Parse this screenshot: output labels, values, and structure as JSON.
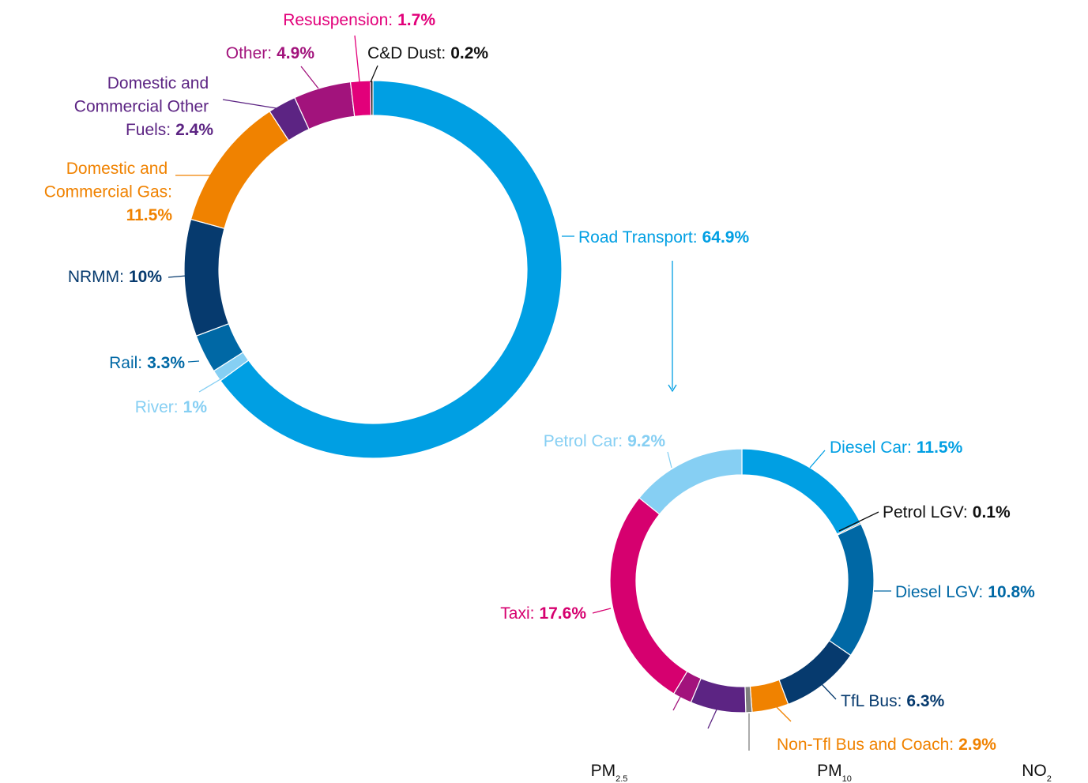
{
  "chart_data": [
    {
      "type": "donut",
      "categories": [
        "Road Transport:",
        "River:",
        "Rail:",
        "NRMM:",
        "Domestic and Commercial Gas:",
        "Domestic and Commercial Other Fuels:",
        "Other:",
        "Resuspension:",
        "C&D Dust:"
      ],
      "values": [
        64.9,
        1,
        3.3,
        10,
        11.5,
        2.4,
        4.9,
        1.7,
        0.2
      ],
      "value_labels": [
        "64.9%",
        "1%",
        "3.3%",
        "10%",
        "11.5%",
        "2.4%",
        "4.9%",
        "1.7%",
        "0.2%"
      ],
      "colors": [
        "#009fe3",
        "#86cff3",
        "#0068a5",
        "#063a6e",
        "#f08200",
        "#5c2483",
        "#a2137c",
        "#e2007a",
        "#111111"
      ]
    },
    {
      "type": "donut",
      "categories": [
        "Diesel Car:",
        "Petrol LGV:",
        "Diesel LGV:",
        "TfL Bus:",
        "Non-Tfl Bus and Coach:",
        null,
        null,
        null,
        "Taxi:",
        "Petrol Car:"
      ],
      "values": [
        11.5,
        0.1,
        10.8,
        6.3,
        2.9,
        0.5,
        4.4,
        1.5,
        17.6,
        9.2
      ],
      "value_labels": [
        "11.5%",
        "0.1%",
        "10.8%",
        "6.3%",
        "2.9%",
        null,
        null,
        null,
        "17.6%",
        "9.2%"
      ],
      "colors": [
        "#009fe3",
        "#111111",
        "#0068a5",
        "#063a6e",
        "#f08200",
        "#7f7f7f",
        "#5c2483",
        "#a2137c",
        "#d6006f",
        "#86cff3"
      ]
    }
  ],
  "tabs": [
    {
      "main": "PM",
      "sub": "2.5"
    },
    {
      "main": "PM",
      "sub": "10"
    },
    {
      "main": "NO",
      "sub": "2"
    }
  ]
}
